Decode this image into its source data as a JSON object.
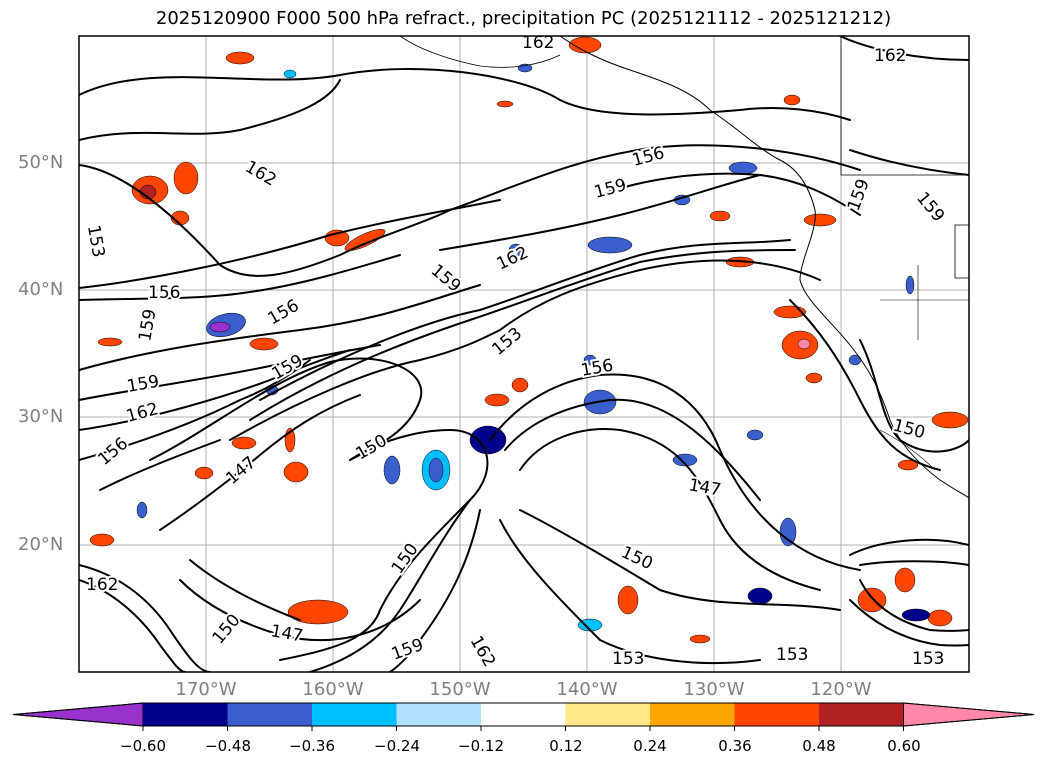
{
  "title": "2025120900 F000 500 hPa refract., precipitation PC (2025121112 - 2025121212)",
  "lat_labels": [
    "50°N",
    "40°N",
    "30°N",
    "20°N"
  ],
  "lon_labels": [
    "170°W",
    "160°W",
    "150°W",
    "140°W",
    "130°W",
    "120°W"
  ],
  "colorbar": {
    "ticks": [
      "−0.60",
      "−0.48",
      "−0.36",
      "−0.24",
      "−0.12",
      "0.12",
      "0.24",
      "0.36",
      "0.48",
      "0.60"
    ],
    "colors": [
      "#9932cc",
      "#00008b",
      "#3a5fcd",
      "#00bfff",
      "#b0e2ff",
      "#ffffff",
      "#ffe98a",
      "#ffa500",
      "#ff4500",
      "#b22222",
      "#ff88aa"
    ]
  },
  "contour_labels": [
    "162",
    "153",
    "156",
    "159",
    "162",
    "159",
    "156",
    "153",
    "150",
    "147",
    "156",
    "159",
    "162",
    "156",
    "147",
    "150",
    "153",
    "162",
    "150",
    "147",
    "153",
    "156",
    "159",
    "150",
    "153",
    "162",
    "156",
    "159",
    "159",
    "159",
    "147",
    "150",
    "153",
    "153",
    "162",
    "156",
    "159"
  ]
}
